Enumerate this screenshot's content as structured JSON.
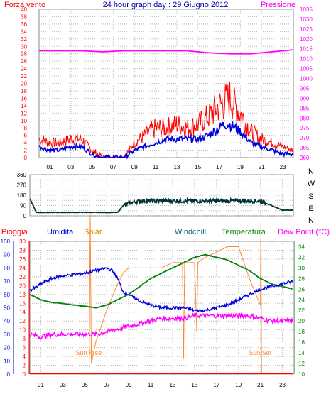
{
  "colors": {
    "background": "#ffffff",
    "grid": "#bbbbbb",
    "gust": "#ff0000",
    "wind": "#0000dd",
    "pressure": "#ff00ff",
    "direction": "#003333",
    "rain": "#ff0000",
    "humidity": "#0000dd",
    "solar": "#ff8833",
    "windchill": "#006666",
    "temperature": "#008800",
    "dew_point": "#ff00ff",
    "title": "#0000aa",
    "border": "#888888"
  },
  "chart_data": [
    {
      "type": "line",
      "title": "24 hour graph day : 29 Giugno 2012",
      "left_axis_label": "Forza vento",
      "right_axis_label": "Pressione",
      "x_tick_labels": [
        "01",
        "03",
        "05",
        "07",
        "09",
        "11",
        "13",
        "15",
        "17",
        "19",
        "21",
        "23"
      ],
      "x_range": [
        0,
        24
      ],
      "y_left_range": [
        0,
        40
      ],
      "y_left_ticks": [
        "0",
        "2",
        "4",
        "6",
        "8",
        "10",
        "12",
        "14",
        "16",
        "18",
        "20",
        "22",
        "24",
        "26",
        "28",
        "30",
        "32",
        "34",
        "36",
        "38",
        "40"
      ],
      "y_right_range": [
        960,
        1035
      ],
      "y_right_ticks": [
        "980",
        "985",
        "990",
        "995",
        "1000",
        "1005",
        "1010",
        "1015",
        "1020",
        "1025",
        "1030",
        "1035"
      ],
      "y_right_ticks_extra_low": [
        "960",
        "965",
        "970",
        "975"
      ],
      "grid": true,
      "series": [
        {
          "key": "gust",
          "x": [
            0,
            1,
            2,
            3,
            4,
            5,
            6,
            7,
            8,
            9,
            10,
            11,
            12,
            13,
            14,
            15,
            16,
            17,
            17.5,
            18,
            18.5,
            19,
            20,
            21,
            22,
            23,
            24
          ],
          "values": [
            5,
            4,
            4,
            5,
            5,
            2,
            0,
            0,
            0,
            4,
            6,
            8,
            8,
            9,
            8,
            9,
            11,
            14,
            15,
            16,
            14,
            12,
            7,
            5,
            4,
            3,
            2
          ]
        },
        {
          "key": "wind",
          "x": [
            0,
            1,
            2,
            3,
            4,
            5,
            6,
            7,
            8,
            9,
            10,
            11,
            12,
            13,
            14,
            15,
            16,
            17,
            17.5,
            18,
            18.5,
            19,
            20,
            21,
            22,
            23,
            24
          ],
          "values": [
            3,
            2,
            2,
            3,
            3,
            1,
            0,
            0,
            0,
            2,
            3,
            4,
            5,
            5,
            5,
            5,
            6,
            8,
            9,
            9,
            8,
            7,
            4,
            3,
            2,
            1,
            1
          ]
        },
        {
          "key": "pressure",
          "x": [
            0,
            2,
            4,
            6,
            8,
            10,
            12,
            14,
            16,
            18,
            20,
            22,
            24
          ],
          "values": [
            1014,
            1014,
            1014,
            1013.5,
            1014,
            1014,
            1014,
            1014,
            1013,
            1012.5,
            1012.5,
            1013.5,
            1014.5
          ]
        }
      ]
    },
    {
      "type": "line",
      "right_labels": [
        "N",
        "W",
        "S",
        "E",
        "N"
      ],
      "y_range": [
        0,
        360
      ],
      "y_ticks": [
        "0",
        "45",
        "90",
        "135",
        "180",
        "225",
        "270",
        "315",
        "360"
      ],
      "y_tick_labels_shown": [
        "0",
        "90",
        "180",
        "270",
        "360"
      ],
      "x_range": [
        0,
        24
      ],
      "grid": true,
      "series": [
        {
          "key": "direction",
          "x": [
            0,
            0.3,
            0.6,
            1,
            2,
            4,
            6,
            8,
            8.5,
            9,
            10,
            11,
            12,
            13,
            14,
            15,
            16,
            17,
            18,
            19,
            20,
            21,
            22,
            23,
            24
          ],
          "values": [
            150,
            90,
            30,
            30,
            30,
            30,
            30,
            30,
            90,
            110,
            130,
            130,
            130,
            130,
            130,
            130,
            130,
            130,
            130,
            130,
            130,
            130,
            90,
            50,
            50
          ]
        }
      ]
    },
    {
      "type": "line",
      "labels": {
        "rain": "Pioggia",
        "humidity": "Umidita",
        "solar": "Solar",
        "windchill": "Windchill",
        "temperature": "Temperatura",
        "dew_point": "Dew Point (°C)"
      },
      "annotations": [
        "Sun Rise",
        "Sun Set"
      ],
      "x_tick_labels": [
        "01",
        "03",
        "05",
        "07",
        "09",
        "11",
        "13",
        "15",
        "17",
        "19",
        "21",
        "23"
      ],
      "x_range": [
        0,
        24
      ],
      "y_humidity_range": [
        0,
        100
      ],
      "y_humidity_ticks": [
        "0",
        "10",
        "20",
        "30",
        "40",
        "50",
        "60",
        "70",
        "80",
        "90",
        "100"
      ],
      "y_rain_range": [
        0,
        30
      ],
      "y_rain_ticks": [
        "0",
        "2",
        "4",
        "6",
        "8",
        "10",
        "12",
        "14",
        "16",
        "18",
        "20",
        "22",
        "24",
        "26",
        "28",
        "30"
      ],
      "y_temp_range": [
        10,
        35
      ],
      "y_temp_ticks": [
        "10",
        "12",
        "14",
        "16",
        "18",
        "20",
        "22",
        "24",
        "26",
        "28",
        "30",
        "32",
        "34"
      ],
      "grid": true,
      "series": [
        {
          "key": "humidity",
          "x": [
            0,
            0.5,
            1,
            2,
            3,
            4,
            5,
            6,
            7,
            7.5,
            8,
            8.5,
            9,
            10,
            11,
            12,
            13,
            14,
            15,
            16,
            17,
            18,
            19,
            20,
            21,
            22,
            23,
            24
          ],
          "values": [
            63,
            65,
            68,
            72,
            74,
            75,
            76,
            78,
            80,
            78,
            72,
            62,
            60,
            55,
            52,
            50,
            50,
            50,
            48,
            48,
            50,
            52,
            56,
            60,
            64,
            66,
            68,
            70
          ]
        },
        {
          "key": "temperature",
          "x": [
            0,
            1,
            2,
            3,
            4,
            5,
            6,
            7,
            8,
            9,
            10,
            11,
            12,
            13,
            14,
            15,
            16,
            17,
            18,
            19,
            20,
            21,
            22,
            23,
            24
          ],
          "values": [
            25,
            24,
            23.5,
            23.3,
            23,
            22.8,
            22.5,
            23,
            24,
            25,
            26.5,
            28,
            29,
            30,
            31,
            32,
            32.5,
            32,
            31.5,
            30.5,
            29.5,
            28,
            27,
            26.5,
            26
          ]
        },
        {
          "key": "windchill",
          "x": [
            0,
            1,
            2,
            3,
            4,
            5,
            6,
            7,
            8,
            9,
            10,
            11,
            12,
            13,
            14,
            15,
            16,
            17,
            18,
            19,
            20,
            21,
            22,
            23,
            24
          ],
          "values": [
            25,
            24,
            23.5,
            23.3,
            23,
            22.8,
            22.5,
            23,
            24,
            25,
            26.5,
            28,
            29,
            30,
            31,
            32,
            32.5,
            32,
            31.5,
            30.5,
            29.5,
            28,
            27,
            26.5,
            26
          ]
        },
        {
          "key": "dew_point",
          "x": [
            0,
            1,
            2,
            3,
            4,
            5,
            6,
            7,
            8,
            9,
            10,
            11,
            12,
            13,
            14,
            15,
            16,
            17,
            18,
            19,
            20,
            21,
            22,
            23,
            24
          ],
          "values": [
            17.5,
            17,
            17.5,
            17.5,
            17.5,
            17.5,
            17.5,
            18,
            18.5,
            19,
            19.5,
            20,
            20.5,
            20.5,
            20.5,
            21,
            21,
            21,
            21,
            21,
            21,
            20.5,
            20,
            20,
            20
          ]
        },
        {
          "key": "solar",
          "x": [
            0,
            5,
            5.4,
            5.5,
            5.6,
            6,
            7,
            8,
            8.5,
            9,
            10,
            11,
            12,
            13,
            13.9,
            14,
            14.1,
            15,
            15.2,
            15.3,
            16,
            17,
            18,
            19,
            20,
            21,
            21.05,
            21.1,
            21.2,
            22,
            24
          ],
          "values": [
            0,
            0,
            0,
            30,
            2,
            6,
            12,
            17,
            19,
            20,
            20,
            20,
            20,
            21,
            21,
            3,
            21,
            21,
            8,
            21,
            22,
            23,
            24,
            24,
            18,
            13,
            29,
            0,
            0,
            0,
            0
          ]
        },
        {
          "key": "rain",
          "x": [
            0,
            24
          ],
          "values": [
            0,
            0
          ]
        }
      ],
      "sun_rise_hour": 5.3,
      "sun_set_hour": 21.1
    }
  ]
}
